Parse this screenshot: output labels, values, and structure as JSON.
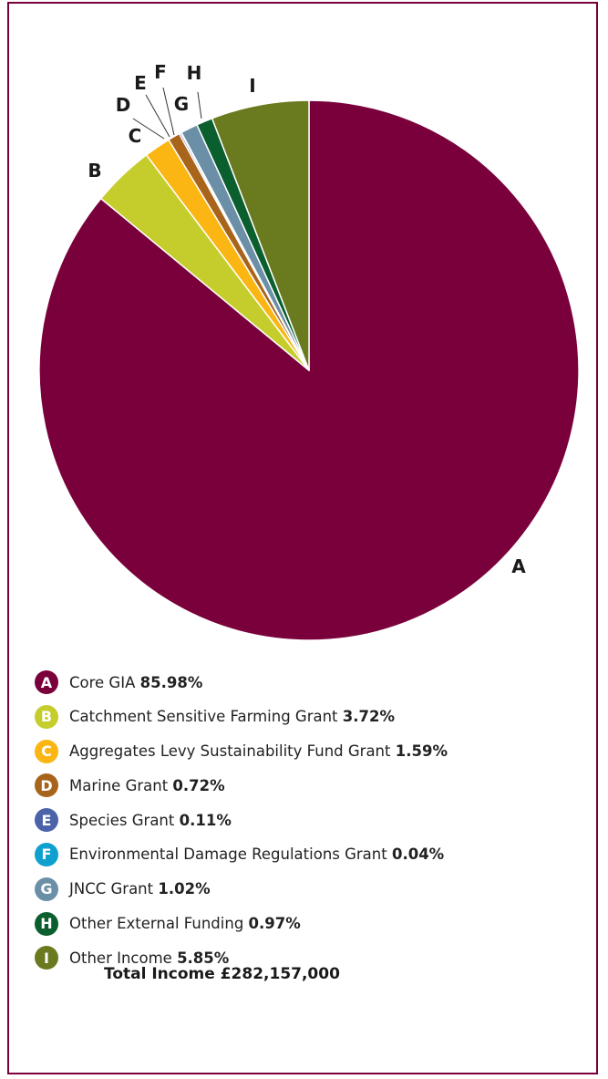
{
  "chart_data": {
    "type": "pie",
    "title": "",
    "slices": [
      {
        "label": "A",
        "name": "Core GIA",
        "value": 85.98,
        "display": "85.98%",
        "color": "#7a003c"
      },
      {
        "label": "B",
        "name": "Catchment Sensitive Farming Grant",
        "value": 3.72,
        "display": "3.72%",
        "color": "#c4cd2b"
      },
      {
        "label": "C",
        "name": "Aggregates Levy Sustainability Fund Grant",
        "value": 1.59,
        "display": "1.59%",
        "color": "#fbb613"
      },
      {
        "label": "D",
        "name": "Marine Grant",
        "value": 0.72,
        "display": "0.72%",
        "color": "#a8641a"
      },
      {
        "label": "E",
        "name": "Species Grant",
        "value": 0.11,
        "display": "0.11%",
        "color": "#4b63a9"
      },
      {
        "label": "F",
        "name": "Environmental Damage Regulations Grant",
        "value": 0.04,
        "display": "0.04%",
        "color": "#10a0cf"
      },
      {
        "label": "G",
        "name": "JNCC Grant",
        "value": 1.02,
        "display": "1.02%",
        "color": "#6b8fa6"
      },
      {
        "label": "H",
        "name": "Other External Funding",
        "value": 0.97,
        "display": "0.97%",
        "color": "#0b5e2e"
      },
      {
        "label": "I",
        "name": "Other Income",
        "value": 5.85,
        "display": "5.85%",
        "color": "#6a7a1e"
      }
    ],
    "start_angle_deg": 0,
    "direction": "clockwise"
  },
  "total": {
    "label": "Total Income",
    "value": "£282,157,000"
  }
}
